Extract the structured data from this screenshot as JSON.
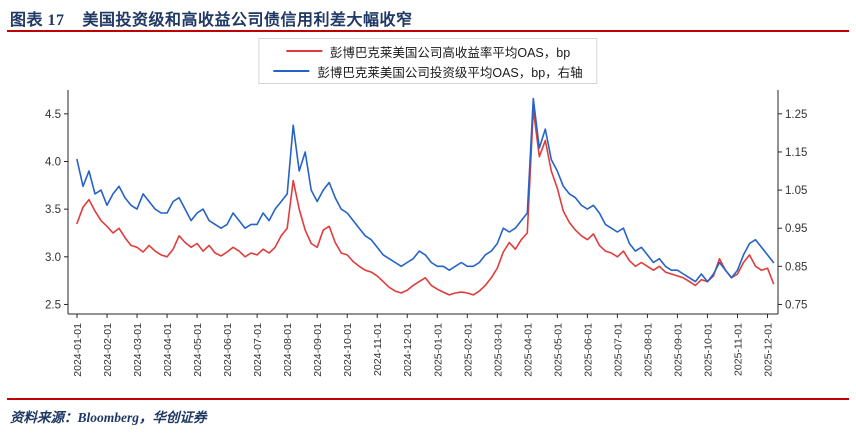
{
  "header": {
    "chart_label": "图表 17",
    "title": "美国投资级和高收益公司债信用利差大幅收窄"
  },
  "footer": {
    "source": "资料来源：Bloomberg，华创证券"
  },
  "colors": {
    "accent_red": "#C00000",
    "title_navy": "#1F3864",
    "axis_line": "#262626",
    "tick_text": "#333333"
  },
  "chart_data": {
    "type": "line",
    "title": "",
    "grid": false,
    "legend_position": "top-center",
    "x_axis": {
      "range_months": [
        -0.3,
        23.35
      ],
      "tick_labels": [
        "2024-01-01",
        "2024-02-01",
        "2024-03-01",
        "2024-04-01",
        "2024-05-01",
        "2024-06-01",
        "2024-07-01",
        "2024-08-01",
        "2024-09-01",
        "2024-10-01",
        "2024-11-01",
        "2024-12-01",
        "2025-01-01",
        "2025-02-01",
        "2025-03-01",
        "2025-04-01",
        "2025-05-01",
        "2025-06-01",
        "2025-07-01",
        "2025-08-01",
        "2025-09-01",
        "2025-10-01",
        "2025-11-01",
        "2025-12-01"
      ]
    },
    "left_axis": {
      "range": [
        2.4,
        4.75
      ],
      "tick_values": [
        2.5,
        3.0,
        3.5,
        4.0,
        4.5
      ],
      "tick_labels": [
        "2.5",
        "3.0",
        "3.5",
        "4.0",
        "4.5"
      ]
    },
    "right_axis": {
      "range": [
        0.725,
        1.3125
      ],
      "tick_values": [
        0.75,
        0.85,
        0.95,
        1.05,
        1.15,
        1.25
      ],
      "tick_labels": [
        "0.75",
        "0.85",
        "0.95",
        "1.05",
        "1.15",
        "1.25"
      ]
    },
    "series": [
      {
        "name": "彭博巴克莱美国公司高收益率平均OAS，bp",
        "axis": "left",
        "color": "#E03C3C",
        "x_start": 0,
        "x_step": 0.2,
        "values": [
          3.35,
          3.52,
          3.6,
          3.48,
          3.38,
          3.32,
          3.25,
          3.3,
          3.2,
          3.12,
          3.1,
          3.05,
          3.12,
          3.06,
          3.02,
          3.0,
          3.08,
          3.22,
          3.15,
          3.1,
          3.14,
          3.06,
          3.12,
          3.04,
          3.01,
          3.05,
          3.1,
          3.06,
          3.0,
          3.04,
          3.02,
          3.08,
          3.04,
          3.1,
          3.22,
          3.3,
          3.8,
          3.5,
          3.28,
          3.14,
          3.1,
          3.28,
          3.32,
          3.15,
          3.04,
          3.02,
          2.95,
          2.9,
          2.86,
          2.84,
          2.8,
          2.74,
          2.68,
          2.64,
          2.62,
          2.65,
          2.7,
          2.74,
          2.78,
          2.7,
          2.66,
          2.63,
          2.6,
          2.62,
          2.63,
          2.62,
          2.6,
          2.64,
          2.7,
          2.78,
          2.88,
          3.05,
          3.15,
          3.08,
          3.18,
          3.25,
          4.55,
          4.05,
          4.22,
          3.9,
          3.72,
          3.48,
          3.36,
          3.28,
          3.22,
          3.18,
          3.24,
          3.12,
          3.06,
          3.04,
          3.0,
          3.06,
          2.96,
          2.9,
          2.94,
          2.9,
          2.86,
          2.9,
          2.84,
          2.82,
          2.8,
          2.78,
          2.74,
          2.7,
          2.76,
          2.74,
          2.8,
          2.98,
          2.86,
          2.78,
          2.82,
          2.94,
          3.02,
          2.9,
          2.86,
          2.88,
          2.72
        ]
      },
      {
        "name": "彭博巴克莱美国公司投资级平均OAS，bp，右轴",
        "axis": "right",
        "color": "#2663C7",
        "x_start": 0,
        "x_step": 0.2,
        "values": [
          1.13,
          1.06,
          1.1,
          1.04,
          1.05,
          1.01,
          1.04,
          1.06,
          1.03,
          1.01,
          1.0,
          1.04,
          1.02,
          1.0,
          0.99,
          0.99,
          1.02,
          1.03,
          1.0,
          0.97,
          0.99,
          1.0,
          0.97,
          0.96,
          0.95,
          0.96,
          0.99,
          0.97,
          0.95,
          0.96,
          0.96,
          0.99,
          0.97,
          1.0,
          1.02,
          1.04,
          1.22,
          1.1,
          1.15,
          1.05,
          1.02,
          1.05,
          1.07,
          1.03,
          1.0,
          0.99,
          0.97,
          0.95,
          0.93,
          0.92,
          0.9,
          0.88,
          0.87,
          0.86,
          0.85,
          0.86,
          0.87,
          0.89,
          0.88,
          0.86,
          0.85,
          0.85,
          0.84,
          0.85,
          0.86,
          0.85,
          0.85,
          0.86,
          0.88,
          0.89,
          0.91,
          0.95,
          0.94,
          0.95,
          0.97,
          0.99,
          1.29,
          1.16,
          1.21,
          1.13,
          1.1,
          1.06,
          1.04,
          1.03,
          1.01,
          1.0,
          1.01,
          0.99,
          0.96,
          0.95,
          0.94,
          0.95,
          0.91,
          0.89,
          0.9,
          0.88,
          0.86,
          0.87,
          0.85,
          0.84,
          0.84,
          0.83,
          0.82,
          0.81,
          0.83,
          0.81,
          0.83,
          0.86,
          0.84,
          0.82,
          0.84,
          0.88,
          0.91,
          0.92,
          0.9,
          0.88,
          0.86
        ]
      }
    ]
  }
}
